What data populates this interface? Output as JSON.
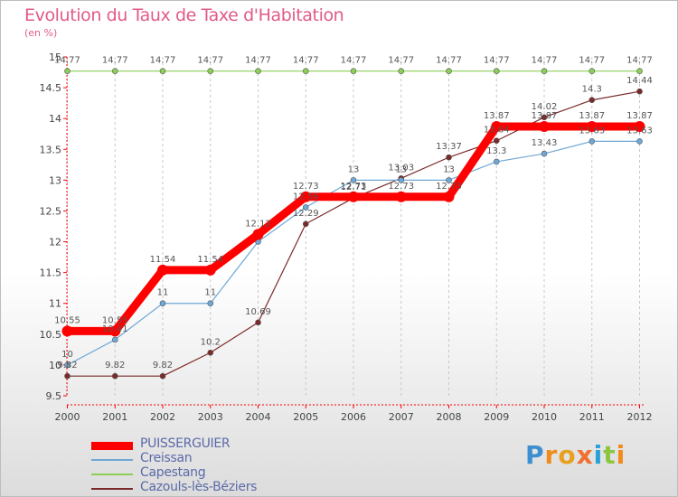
{
  "title": "Evolution du Taux de Taxe d'Habitation",
  "subtitle": "(en %)",
  "brand": {
    "text": "Proxiti",
    "letters": [
      "P",
      "r",
      "o",
      "x",
      "i",
      "t",
      "i"
    ],
    "colors": [
      "#3d8fd1",
      "#f08c1c",
      "#e8a020",
      "#f07030",
      "#2aa0d8",
      "#8cc63e",
      "#f08c1c"
    ]
  },
  "chart_data": {
    "type": "line",
    "title": "Evolution du Taux de Taxe d'Habitation",
    "ylabel": "(en %)",
    "x": [
      "2000",
      "2001",
      "2002",
      "2003",
      "2004",
      "2005",
      "2006",
      "2007",
      "2008",
      "2009",
      "2010",
      "2011",
      "2012"
    ],
    "ylim": [
      9.5,
      15
    ],
    "yticks": [
      "9.5",
      "10",
      "10.5",
      "11",
      "11.5",
      "12",
      "12.5",
      "13",
      "13.5",
      "14",
      "14.5",
      "15"
    ],
    "grid": "vertical-dashed",
    "legend_position": "bottom-left",
    "series": [
      {
        "name": "PUISSERGUIER",
        "color": "#ff0000",
        "values": [
          10.55,
          10.55,
          11.54,
          11.54,
          12.12,
          12.73,
          12.73,
          12.73,
          12.73,
          13.87,
          13.87,
          13.87,
          13.87
        ],
        "labels": [
          "10.55",
          "10.55",
          "11.54",
          "11.54",
          "12.12",
          "12.73",
          "12.73",
          "12.73",
          "12.73",
          "13.87",
          "13.87",
          "13.87",
          "13.87"
        ]
      },
      {
        "name": "Creissan",
        "color": "#6fa8d6",
        "values": [
          10,
          10.41,
          11,
          11,
          12,
          12.56,
          13,
          13,
          13,
          13.3,
          13.43,
          13.63,
          13.63
        ],
        "labels": [
          "10",
          "10.41",
          "11",
          "11",
          "",
          "12.56",
          "13",
          "13",
          "13",
          "13.3",
          "13.43",
          "13.63",
          "13.63"
        ]
      },
      {
        "name": "Capestang",
        "color": "#8ccf57",
        "values": [
          14.77,
          14.77,
          14.77,
          14.77,
          14.77,
          14.77,
          14.77,
          14.77,
          14.77,
          14.77,
          14.77,
          14.77,
          14.77
        ],
        "labels": [
          "14.77",
          "14.77",
          "14.77",
          "14.77",
          "14.77",
          "14.77",
          "14.77",
          "14.77",
          "14.77",
          "14.77",
          "14.77",
          "14.77",
          "14.77"
        ]
      },
      {
        "name": "Cazouls-lès-Béziers",
        "color": "#7a2a2a",
        "values": [
          9.82,
          9.82,
          9.82,
          10.2,
          10.69,
          12.29,
          12.71,
          13.03,
          13.37,
          13.64,
          14.02,
          14.3,
          14.44
        ],
        "labels": [
          "9.82",
          "9.82",
          "9.82",
          "10.2",
          "10.69",
          "12.29",
          "12.71",
          "13.03",
          "13.37",
          "13.64",
          "14.02",
          "14.3",
          "14.44"
        ]
      }
    ]
  }
}
